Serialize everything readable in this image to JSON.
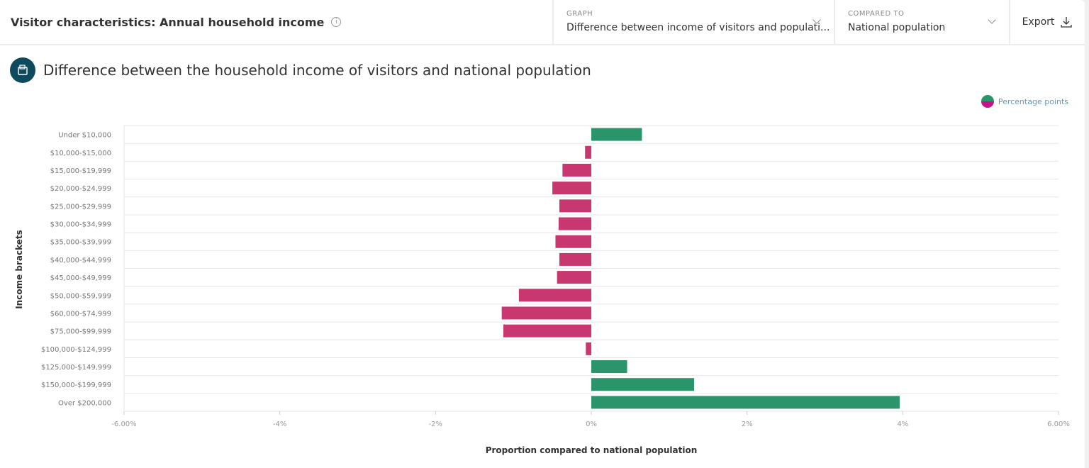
{
  "header": {
    "title": "Visitor characteristics: Annual household income",
    "graph_label": "GRAPH",
    "graph_value": "Difference between income of visitors and populati...",
    "compared_label": "COMPARED TO",
    "compared_value": "National population",
    "export_label": "Export"
  },
  "chart_data": {
    "type": "bar",
    "orientation": "horizontal",
    "title": "Difference between the household income of visitors and national population",
    "xlabel": "Proportion compared to national population",
    "ylabel": "Income brackets",
    "xlim": [
      -6,
      6
    ],
    "xticks": [
      -6,
      -4,
      -2,
      0,
      2,
      4,
      6
    ],
    "xtick_labels": [
      "-6.00%",
      "-4%",
      "-2%",
      "0%",
      "2%",
      "4%",
      "6.00%"
    ],
    "legend": {
      "label": "Percentage points",
      "position": "top-right"
    },
    "colors": {
      "positive": "#2a946a",
      "negative": "#c8376f"
    },
    "grid": true,
    "categories": [
      "Under $10,000",
      "$10,000-$15,000",
      "$15,000-$19,999",
      "$20,000-$24,999",
      "$25,000-$29,999",
      "$30,000-$34,999",
      "$35,000-$39,999",
      "$40,000-$44,999",
      "$45,000-$49,999",
      "$50,000-$59,999",
      "$60,000-$74,999",
      "$75,000-$99,999",
      "$100,000-$124,999",
      "$125,000-$149,999",
      "$150,000-$199,999",
      "Over $200,000"
    ],
    "values": [
      0.65,
      -0.08,
      -0.37,
      -0.5,
      -0.41,
      -0.42,
      -0.46,
      -0.41,
      -0.44,
      -0.93,
      -1.15,
      -1.13,
      -0.07,
      0.46,
      1.32,
      3.96
    ]
  }
}
